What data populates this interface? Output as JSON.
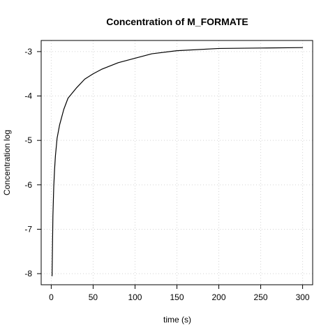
{
  "chart_data": {
    "type": "line",
    "title": "Concentration of M_FORMATE",
    "xlabel": "time (s)",
    "ylabel": "Concentration log",
    "xlim": [
      -12,
      312
    ],
    "ylim": [
      -8.25,
      -2.75
    ],
    "x_ticks": [
      0,
      50,
      100,
      150,
      200,
      250,
      300
    ],
    "y_ticks": [
      -8,
      -7,
      -6,
      -5,
      -4,
      -3
    ],
    "x_tick_labels": [
      "0",
      "50",
      "100",
      "150",
      "200",
      "250",
      "300"
    ],
    "y_tick_labels": [
      "-8",
      "-7",
      "-6",
      "-5",
      "-4",
      "-3"
    ],
    "grid": true,
    "colors": {
      "line": "#000000",
      "grid": "#d3d3d3",
      "axis": "#000000"
    },
    "series": [
      {
        "x": [
          1,
          2,
          3,
          4,
          5,
          7,
          10,
          15,
          20,
          30,
          40,
          50,
          60,
          80,
          100,
          120,
          150,
          200,
          250,
          300
        ],
        "values": [
          -8.05,
          -6.7,
          -6.05,
          -5.65,
          -5.35,
          -4.95,
          -4.65,
          -4.3,
          -4.05,
          -3.82,
          -3.62,
          -3.5,
          -3.4,
          -3.25,
          -3.15,
          -3.05,
          -2.98,
          -2.93,
          -2.92,
          -2.91
        ]
      }
    ]
  }
}
